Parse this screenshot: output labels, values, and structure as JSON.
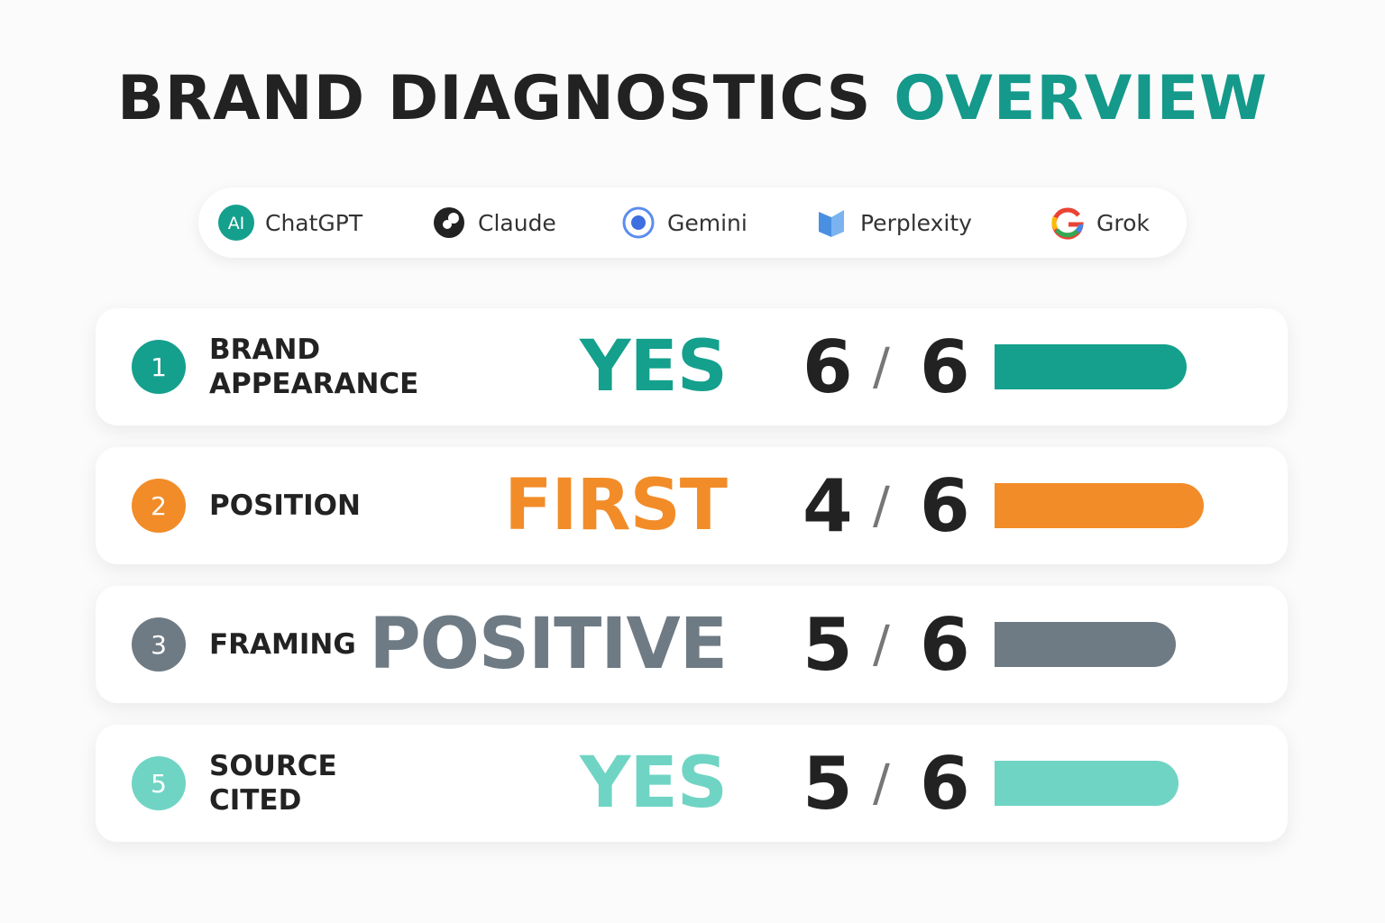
{
  "header": {
    "title": "BRAND DIAGNOSTICS",
    "title_accent": "OVERVIEW"
  },
  "platforms": [
    {
      "label": "ChatGPT",
      "icon_text": "AI"
    },
    {
      "label": "Claude"
    },
    {
      "label": "Gemini"
    },
    {
      "label": "Perplexity"
    },
    {
      "label": "Grok"
    }
  ],
  "rows": [
    {
      "number": "1",
      "label_lines": [
        "BRAND",
        "APPEARANCE"
      ],
      "verdict": "YES",
      "score": "6",
      "separator": "/",
      "total": "6",
      "color": "#14a08c"
    },
    {
      "number": "2",
      "label_lines": [
        "POSITION"
      ],
      "verdict": "FIRST",
      "score": "4",
      "separator": "/",
      "total": "6",
      "color": "#f28c28"
    },
    {
      "number": "3",
      "label_lines": [
        "FRAMING"
      ],
      "verdict": "POSITIVE",
      "score": "5",
      "separator": "/",
      "total": "6",
      "color": "#6f7b84"
    },
    {
      "number": "5",
      "label_lines": [
        "SOURCE",
        "CITED"
      ],
      "verdict": "YES",
      "score": "5",
      "separator": "/",
      "total": "6",
      "color": "#70d4c4"
    }
  ]
}
